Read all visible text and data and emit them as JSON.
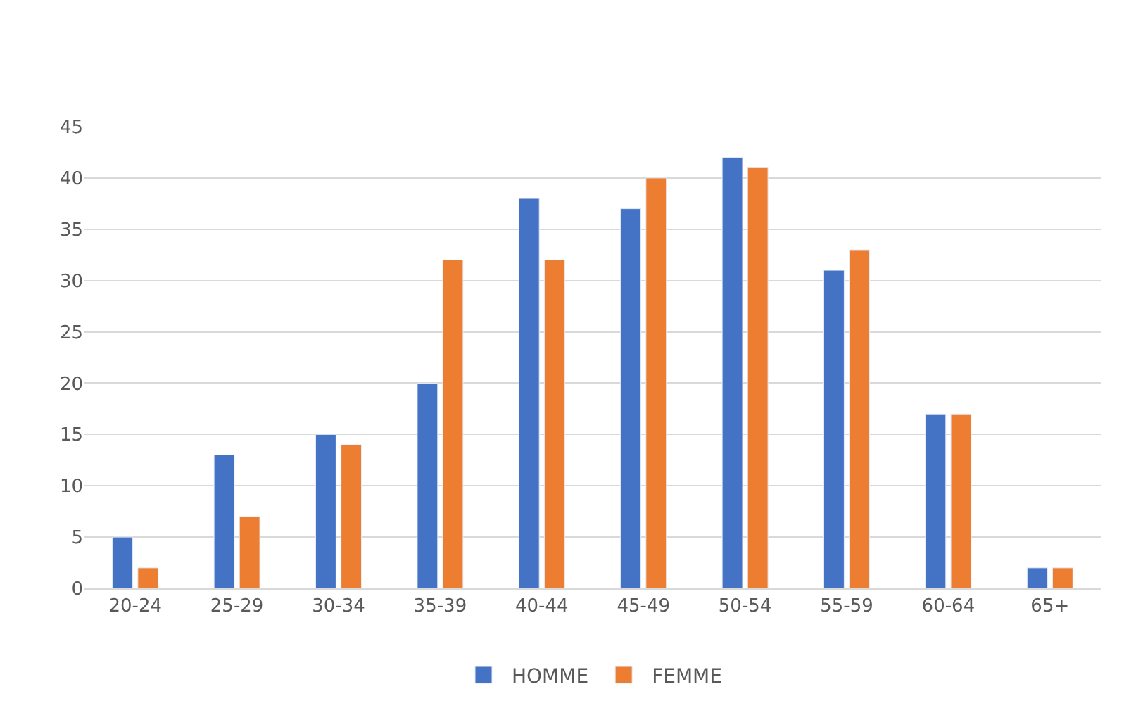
{
  "chart_data": {
    "type": "bar",
    "categories": [
      "20-24",
      "25-29",
      "30-34",
      "35-39",
      "40-44",
      "45-49",
      "50-54",
      "55-59",
      "60-64",
      "65+"
    ],
    "series": [
      {
        "name": "HOMME",
        "color": "#4472c4",
        "values": [
          5,
          13,
          15,
          20,
          38,
          37,
          42,
          31,
          17,
          2
        ]
      },
      {
        "name": "FEMME",
        "color": "#ed7d31",
        "values": [
          2,
          7,
          14,
          32,
          32,
          40,
          41,
          33,
          17,
          2
        ]
      }
    ],
    "ylim": [
      0,
      45
    ],
    "yticks": [
      0,
      5,
      10,
      15,
      20,
      25,
      30,
      35,
      40,
      45
    ],
    "grid": "y",
    "legend": "bottom"
  }
}
